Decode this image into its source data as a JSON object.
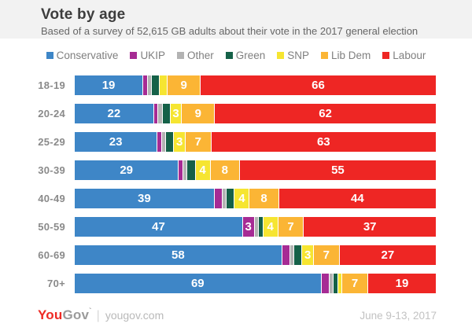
{
  "header": {
    "title": "Vote by age",
    "subtitle": "Based of a survey of 52,615 GB adults about their vote in the 2017 general election"
  },
  "chart_data": {
    "type": "bar",
    "orientation": "horizontal",
    "stacked": true,
    "unit": "percent",
    "xlim": [
      0,
      100
    ],
    "legend_position": "top",
    "value_label_color": "#ffffff",
    "value_label_threshold": 3,
    "categories": [
      "18-19",
      "20-24",
      "25-29",
      "30-39",
      "40-49",
      "50-59",
      "60-69",
      "70+"
    ],
    "series": [
      {
        "name": "Conservative",
        "color": "#3e86c7",
        "values": [
          19,
          22,
          23,
          29,
          39,
          47,
          58,
          69
        ]
      },
      {
        "name": "UKIP",
        "color": "#a62b94",
        "values": [
          1,
          1,
          1,
          1,
          2,
          3,
          2,
          2
        ]
      },
      {
        "name": "Other",
        "color": "#b3b3b3",
        "values": [
          1,
          1,
          1,
          1,
          1,
          1,
          1,
          1
        ]
      },
      {
        "name": "Green",
        "color": "#156148",
        "values": [
          2,
          2,
          2,
          2,
          2,
          1,
          2,
          1
        ]
      },
      {
        "name": "SNP",
        "color": "#f6e531",
        "values": [
          2,
          3,
          3,
          4,
          4,
          4,
          3,
          1
        ]
      },
      {
        "name": "Lib Dem",
        "color": "#fbb535",
        "values": [
          9,
          9,
          7,
          8,
          8,
          7,
          7,
          7
        ]
      },
      {
        "name": "Labour",
        "color": "#ee2624",
        "values": [
          66,
          62,
          63,
          55,
          44,
          37,
          27,
          19
        ]
      }
    ]
  },
  "colors": {
    "header_bg": "#f2f2f2",
    "title_text": "#3d3d3d",
    "subtitle_text": "#666666",
    "legend_text": "#7f7f7f",
    "category_text": "#8a8a8a",
    "logo_red": "#ee2a24",
    "logo_gray": "#9b9b9b"
  },
  "footer": {
    "logo_you": "You",
    "logo_gov": "Gov",
    "site": "yougov.com",
    "date": "June 9-13, 2017"
  }
}
